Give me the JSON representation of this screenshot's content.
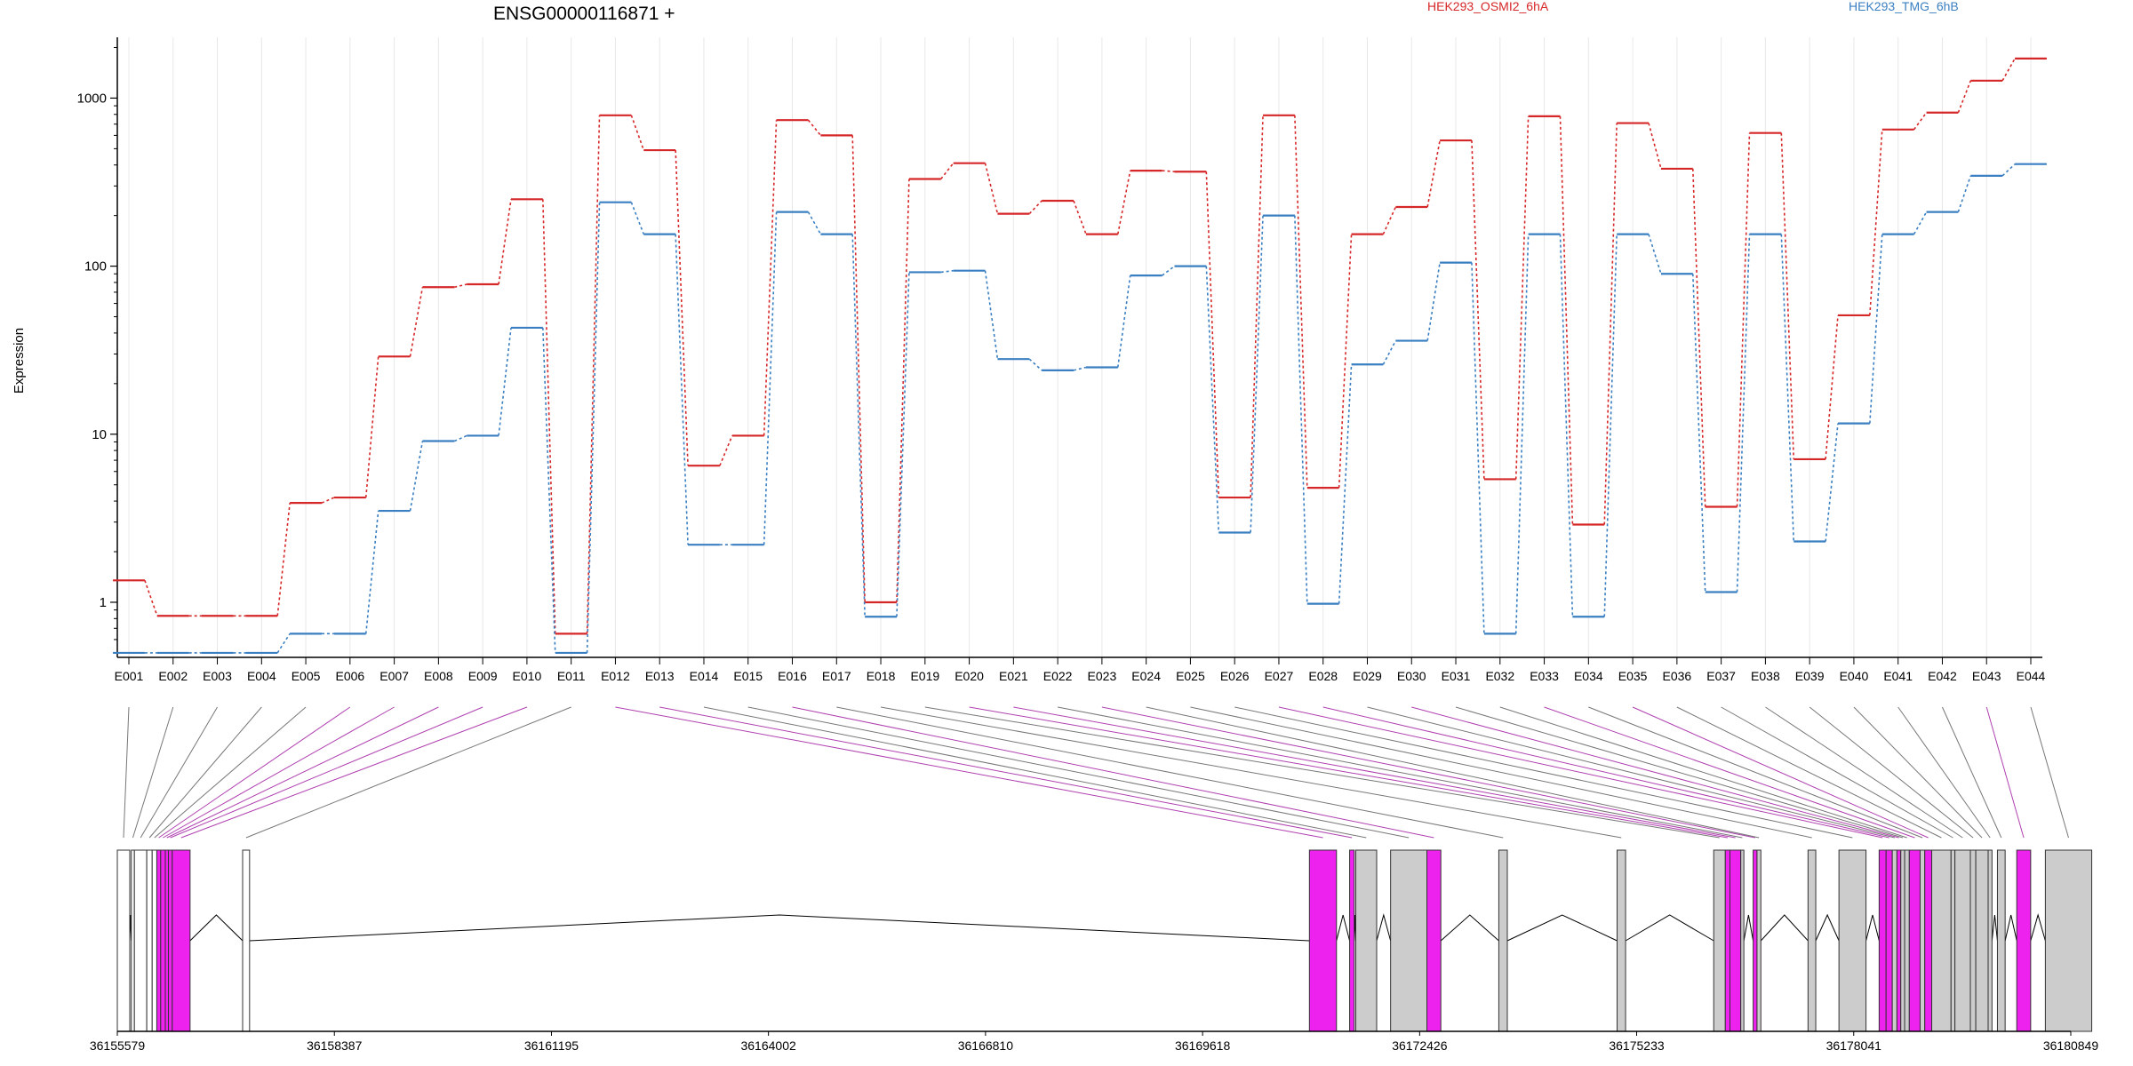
{
  "chart_data": {
    "type": "line",
    "title": "ENSG00000116871 +",
    "ylabel": "Expression",
    "yscale": "log",
    "ylim": [
      0.47,
      2300
    ],
    "yticks": [
      1,
      10,
      100,
      1000
    ],
    "ytick_labels": [
      "1",
      "10",
      "100",
      "1000"
    ],
    "categories": [
      "E001",
      "E002",
      "E003",
      "E004",
      "E005",
      "E006",
      "E007",
      "E008",
      "E009",
      "E010",
      "E011",
      "E012",
      "E013",
      "E014",
      "E015",
      "E016",
      "E017",
      "E018",
      "E019",
      "E020",
      "E021",
      "E022",
      "E023",
      "E024",
      "E025",
      "E026",
      "E027",
      "E028",
      "E029",
      "E030",
      "E031",
      "E032",
      "E033",
      "E034",
      "E035",
      "E036",
      "E037",
      "E038",
      "E039",
      "E040",
      "E041",
      "E042",
      "E043",
      "E044"
    ],
    "series": [
      {
        "name": "HEK293_OSMI2_6hA",
        "color": "#d62728",
        "values": [
          1.35,
          0.83,
          0.83,
          0.83,
          3.9,
          4.2,
          29,
          75,
          78,
          250,
          0.65,
          790,
          490,
          6.5,
          9.8,
          740,
          600,
          1.0,
          330,
          410,
          205,
          245,
          155,
          370,
          365,
          4.2,
          790,
          4.8,
          155,
          225,
          560,
          5.4,
          780,
          2.9,
          710,
          380,
          3.7,
          620,
          7.1,
          51,
          650,
          820,
          1270,
          1720
        ]
      },
      {
        "name": "HEK293_TMG_6hB",
        "color": "#3a7fc1",
        "values": [
          0.5,
          0.5,
          0.5,
          0.5,
          0.65,
          0.65,
          3.5,
          9.1,
          9.8,
          43,
          0.5,
          240,
          155,
          2.2,
          2.2,
          210,
          155,
          0.82,
          92,
          94,
          28,
          24,
          25,
          88,
          100,
          2.6,
          200,
          0.98,
          26,
          36,
          105,
          0.65,
          155,
          0.82,
          155,
          90,
          1.15,
          155,
          2.3,
          11.6,
          155,
          210,
          345,
          405
        ]
      }
    ],
    "gene_model": {
      "coordinate_ticks": [
        "36155579",
        "36158387",
        "36161195",
        "36164002",
        "36166810",
        "36169618",
        "36172426",
        "36175233",
        "36178041",
        "36180849"
      ],
      "highlight_color": "#ee22ee",
      "exon_fill": "#cccccc",
      "exon_fill_first": "#ffffff",
      "exons": [
        {
          "id": "E001",
          "start": 36155579,
          "end": 36155740,
          "highlight": false
        },
        {
          "id": "E002",
          "start": 36155760,
          "end": 36155800,
          "highlight": false
        },
        {
          "id": "E003",
          "start": 36155800,
          "end": 36155960,
          "highlight": false
        },
        {
          "id": "E004",
          "start": 36155960,
          "end": 36156030,
          "highlight": false
        },
        {
          "id": "E005",
          "start": 36156030,
          "end": 36156090,
          "highlight": false
        },
        {
          "id": "E006",
          "start": 36156090,
          "end": 36156140,
          "highlight": true
        },
        {
          "id": "E007",
          "start": 36156140,
          "end": 36156200,
          "highlight": true
        },
        {
          "id": "E008",
          "start": 36156200,
          "end": 36156240,
          "highlight": true
        },
        {
          "id": "E009",
          "start": 36156240,
          "end": 36156290,
          "highlight": true
        },
        {
          "id": "E010",
          "start": 36156290,
          "end": 36156520,
          "highlight": true
        },
        {
          "id": "E011",
          "start": 36157200,
          "end": 36157290,
          "highlight": false
        },
        {
          "id": "E012",
          "start": 36171000,
          "end": 36171350,
          "highlight": true
        },
        {
          "id": "E013",
          "start": 36171520,
          "end": 36171580,
          "highlight": true
        },
        {
          "id": "E014",
          "start": 36171600,
          "end": 36171870,
          "highlight": false
        },
        {
          "id": "E015",
          "start": 36172050,
          "end": 36172520,
          "highlight": false
        },
        {
          "id": "E016",
          "start": 36172520,
          "end": 36172700,
          "highlight": true
        },
        {
          "id": "E017",
          "start": 36173450,
          "end": 36173560,
          "highlight": false
        },
        {
          "id": "E018",
          "start": 36174980,
          "end": 36175090,
          "highlight": false
        },
        {
          "id": "E019",
          "start": 36176230,
          "end": 36176380,
          "highlight": false
        },
        {
          "id": "E020",
          "start": 36176380,
          "end": 36176440,
          "highlight": true
        },
        {
          "id": "E021",
          "start": 36176440,
          "end": 36176580,
          "highlight": true
        },
        {
          "id": "E022",
          "start": 36176580,
          "end": 36176620,
          "highlight": false
        },
        {
          "id": "E023",
          "start": 36176740,
          "end": 36176790,
          "highlight": true
        },
        {
          "id": "E024",
          "start": 36176790,
          "end": 36176840,
          "highlight": false
        },
        {
          "id": "E025",
          "start": 36177450,
          "end": 36177550,
          "highlight": false
        },
        {
          "id": "E026",
          "start": 36177850,
          "end": 36178200,
          "highlight": false
        },
        {
          "id": "E027",
          "start": 36178370,
          "end": 36178460,
          "highlight": true
        },
        {
          "id": "E028",
          "start": 36178460,
          "end": 36178540,
          "highlight": true
        },
        {
          "id": "E029",
          "start": 36178540,
          "end": 36178600,
          "highlight": false
        },
        {
          "id": "E030",
          "start": 36178600,
          "end": 36178650,
          "highlight": true
        },
        {
          "id": "E031",
          "start": 36178650,
          "end": 36178700,
          "highlight": false
        },
        {
          "id": "E032",
          "start": 36178700,
          "end": 36178760,
          "highlight": false
        },
        {
          "id": "E033",
          "start": 36178760,
          "end": 36178900,
          "highlight": true
        },
        {
          "id": "E034",
          "start": 36178900,
          "end": 36178960,
          "highlight": false
        },
        {
          "id": "E035",
          "start": 36178960,
          "end": 36179050,
          "highlight": true
        },
        {
          "id": "E036",
          "start": 36179050,
          "end": 36179300,
          "highlight": false
        },
        {
          "id": "E037",
          "start": 36179300,
          "end": 36179350,
          "highlight": false
        },
        {
          "id": "E038",
          "start": 36179350,
          "end": 36179550,
          "highlight": false
        },
        {
          "id": "E039",
          "start": 36179550,
          "end": 36179620,
          "highlight": false
        },
        {
          "id": "E040",
          "start": 36179620,
          "end": 36179780,
          "highlight": false
        },
        {
          "id": "E041",
          "start": 36179780,
          "end": 36179830,
          "highlight": false
        },
        {
          "id": "E042",
          "start": 36179900,
          "end": 36180000,
          "highlight": false
        },
        {
          "id": "E043",
          "start": 36180150,
          "end": 36180330,
          "highlight": true
        },
        {
          "id": "E044",
          "start": 36180520,
          "end": 36181120,
          "highlight": false
        }
      ],
      "introns": [
        [
          36155740,
          36155760
        ],
        [
          36156520,
          36157200
        ],
        [
          36157290,
          36171000
        ],
        [
          36171350,
          36171520
        ],
        [
          36171580,
          36171600
        ],
        [
          36171870,
          36172050
        ],
        [
          36172700,
          36173450
        ],
        [
          36173560,
          36174980
        ],
        [
          36175090,
          36176230
        ],
        [
          36176620,
          36176740
        ],
        [
          36176840,
          36177450
        ],
        [
          36177550,
          36177850
        ],
        [
          36178200,
          36178370
        ],
        [
          36179830,
          36179900
        ],
        [
          36180000,
          36180150
        ],
        [
          36180330,
          36180520
        ]
      ]
    }
  }
}
